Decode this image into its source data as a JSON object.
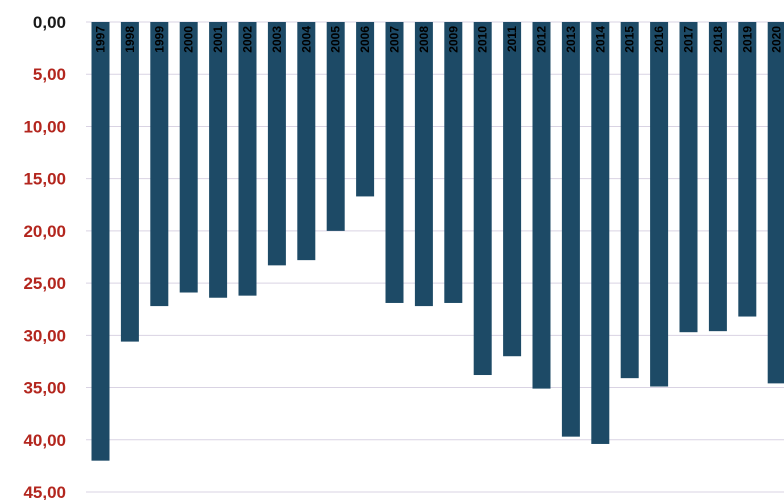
{
  "chart_data": {
    "type": "bar",
    "orientation": "vertical",
    "y_axis_inverted": true,
    "categories": [
      "1997",
      "1998",
      "1999",
      "2000",
      "2001",
      "2002",
      "2003",
      "2004",
      "2005",
      "2006",
      "2007",
      "2008",
      "2009",
      "2010",
      "2011",
      "2012",
      "2013",
      "2014",
      "2015",
      "2016",
      "2017",
      "2018",
      "2019",
      "2020"
    ],
    "values": [
      42.0,
      30.6,
      27.2,
      25.9,
      26.4,
      26.2,
      23.3,
      22.8,
      20.0,
      16.7,
      26.9,
      27.2,
      26.9,
      33.8,
      32.0,
      35.1,
      39.7,
      40.4,
      34.1,
      34.9,
      29.7,
      29.6,
      28.2,
      34.6
    ],
    "ylim": [
      0,
      45
    ],
    "yticks": [
      "0,00",
      "5,00",
      "10,00",
      "15,00",
      "20,00",
      "25,00",
      "30,00",
      "35,00",
      "40,00",
      "45,00"
    ],
    "title": "",
    "xlabel": "",
    "ylabel": "",
    "grid": true,
    "legend": "none",
    "colors": {
      "bar": "#1d4a66",
      "tick_label_zero": "#1a1a1a",
      "tick_label": "#b3261e",
      "grid": "#d9d3e3"
    }
  }
}
